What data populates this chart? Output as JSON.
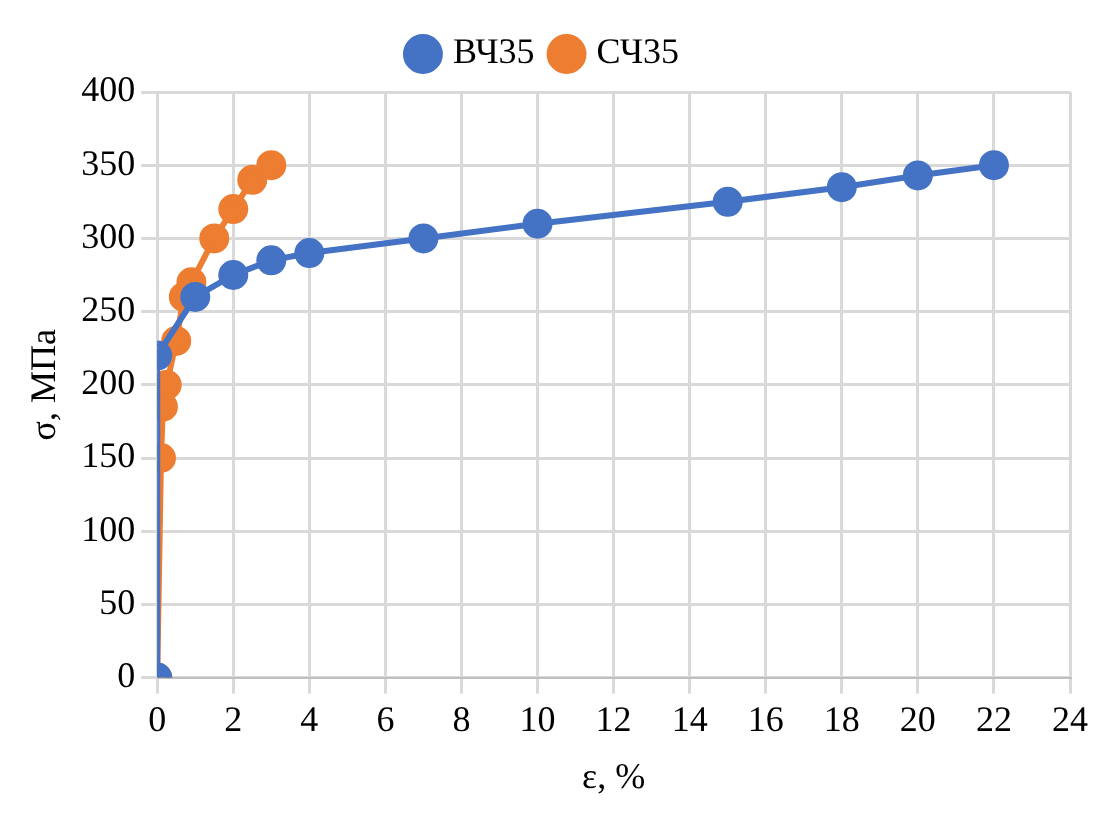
{
  "chart_data": {
    "type": "line",
    "xlabel": "ε, %",
    "ylabel": "σ, МПа",
    "xlim": [
      0,
      24
    ],
    "xticks": [
      0,
      2,
      4,
      6,
      8,
      10,
      12,
      14,
      16,
      18,
      20,
      22,
      24
    ],
    "ylim": [
      0,
      400
    ],
    "yticks": [
      0,
      50,
      100,
      150,
      200,
      250,
      300,
      350,
      400
    ],
    "grid": true,
    "legend": "top",
    "marker": "circle",
    "series": [
      {
        "name": "ВЧ35",
        "color": "#4472c4",
        "x": [
          0,
          0,
          1,
          2,
          3,
          4,
          7,
          10,
          15,
          18,
          20,
          22
        ],
        "values": [
          0,
          220,
          260,
          275,
          285,
          290,
          300,
          310,
          325,
          335,
          343,
          350
        ]
      },
      {
        "name": "СЧ35",
        "color": "#ed7d31",
        "x": [
          0,
          0.1,
          0.15,
          0.25,
          0.5,
          0.7,
          0.9,
          1.5,
          2,
          2.5,
          3
        ],
        "values": [
          0,
          150,
          185,
          200,
          230,
          260,
          270,
          300,
          320,
          340,
          350
        ]
      }
    ]
  }
}
